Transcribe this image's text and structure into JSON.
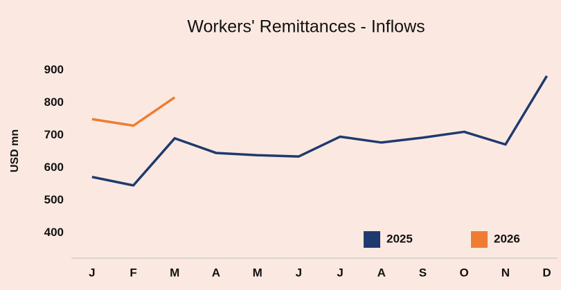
{
  "chart_data": {
    "type": "line",
    "title": "Workers' Remittances  - Inflows",
    "y_label": "USD mn",
    "categories": [
      "J",
      "F",
      "M",
      "A",
      "M",
      "J",
      "J",
      "A",
      "S",
      "O",
      "N",
      "D"
    ],
    "series": [
      {
        "name": "2025",
        "color": "#1f3a6e",
        "values": [
          572,
          546,
          691,
          646,
          639,
          635,
          696,
          678,
          693,
          711,
          672,
          883
        ]
      },
      {
        "name": "2026",
        "color": "#ee7d31",
        "values": [
          750,
          730,
          817,
          null,
          null,
          null,
          null,
          null,
          null,
          null,
          null,
          null
        ]
      }
    ],
    "ylim": [
      322,
      925
    ],
    "yticks": [
      400,
      500,
      600,
      700,
      800,
      900
    ],
    "grid": false,
    "legend": "lower right"
  }
}
